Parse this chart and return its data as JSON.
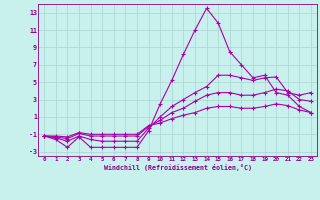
{
  "xlabel": "Windchill (Refroidissement éolien,°C)",
  "bg_color": "#c8f0ec",
  "grid_color": "#aad4d0",
  "line_color": "#aa00aa",
  "axis_color": "#880088",
  "text_color": "#880088",
  "xlim": [
    -0.5,
    23.5
  ],
  "ylim": [
    -3.5,
    14.0
  ],
  "xticks": [
    0,
    1,
    2,
    3,
    4,
    5,
    6,
    7,
    8,
    9,
    10,
    11,
    12,
    13,
    14,
    15,
    16,
    17,
    18,
    19,
    20,
    21,
    22,
    23
  ],
  "yticks": [
    -3,
    -1,
    1,
    3,
    5,
    7,
    9,
    11,
    13
  ],
  "line1": [
    -1.2,
    -1.6,
    -2.5,
    -1.3,
    -2.5,
    -2.5,
    -2.5,
    -2.5,
    -2.5,
    -0.6,
    2.5,
    5.2,
    8.2,
    11.0,
    13.5,
    11.8,
    8.5,
    7.0,
    5.5,
    5.8,
    3.8,
    3.5,
    2.2,
    1.5
  ],
  "line2": [
    -1.2,
    -1.4,
    -1.8,
    -1.2,
    -1.6,
    -1.8,
    -1.8,
    -1.8,
    -1.8,
    -0.3,
    1.0,
    2.2,
    3.0,
    3.8,
    4.5,
    5.8,
    5.8,
    5.5,
    5.2,
    5.5,
    5.6,
    3.8,
    3.5,
    3.8
  ],
  "line3": [
    -1.2,
    -1.3,
    -1.5,
    -0.9,
    -1.2,
    -1.2,
    -1.2,
    -1.2,
    -1.2,
    -0.1,
    0.6,
    1.5,
    2.0,
    2.8,
    3.5,
    3.8,
    3.8,
    3.5,
    3.5,
    3.8,
    4.2,
    4.0,
    3.0,
    2.8
  ],
  "line4": [
    -1.2,
    -1.2,
    -1.3,
    -0.8,
    -1.0,
    -1.0,
    -1.0,
    -1.0,
    -1.0,
    0.0,
    0.3,
    0.8,
    1.2,
    1.5,
    2.0,
    2.2,
    2.2,
    2.0,
    2.0,
    2.2,
    2.5,
    2.3,
    1.8,
    1.5
  ]
}
